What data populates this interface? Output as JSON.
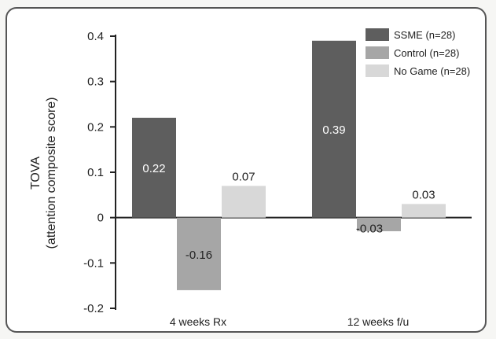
{
  "chart_data": {
    "type": "bar",
    "categories": [
      "4 weeks Rx",
      "12 weeks f/u"
    ],
    "series": [
      {
        "name": "SSME (n=28)",
        "values": [
          0.22,
          0.39
        ],
        "color": "#5e5e5e"
      },
      {
        "name": "Control (n=28)",
        "values": [
          -0.16,
          -0.03
        ],
        "color": "#a6a6a6"
      },
      {
        "name": "No Game (n=28)",
        "values": [
          0.07,
          0.03
        ],
        "color": "#d8d8d8"
      }
    ],
    "data_labels": [
      [
        "0.22",
        "0.39"
      ],
      [
        "-0.16",
        "-0.03"
      ],
      [
        "0.07",
        "0.03"
      ]
    ],
    "ylabel_lines": [
      "TOVA",
      "(attention composite score)"
    ],
    "ylim": [
      -0.2,
      0.4
    ],
    "yticks": [
      -0.2,
      -0.1,
      0,
      0.1,
      0.2,
      0.3,
      0.4
    ],
    "ytick_labels": [
      "-0.2",
      "-0.1",
      "0",
      "0.1",
      "0.2",
      "0.3",
      "0.4"
    ],
    "legend_position": "top-right",
    "grid": false
  }
}
